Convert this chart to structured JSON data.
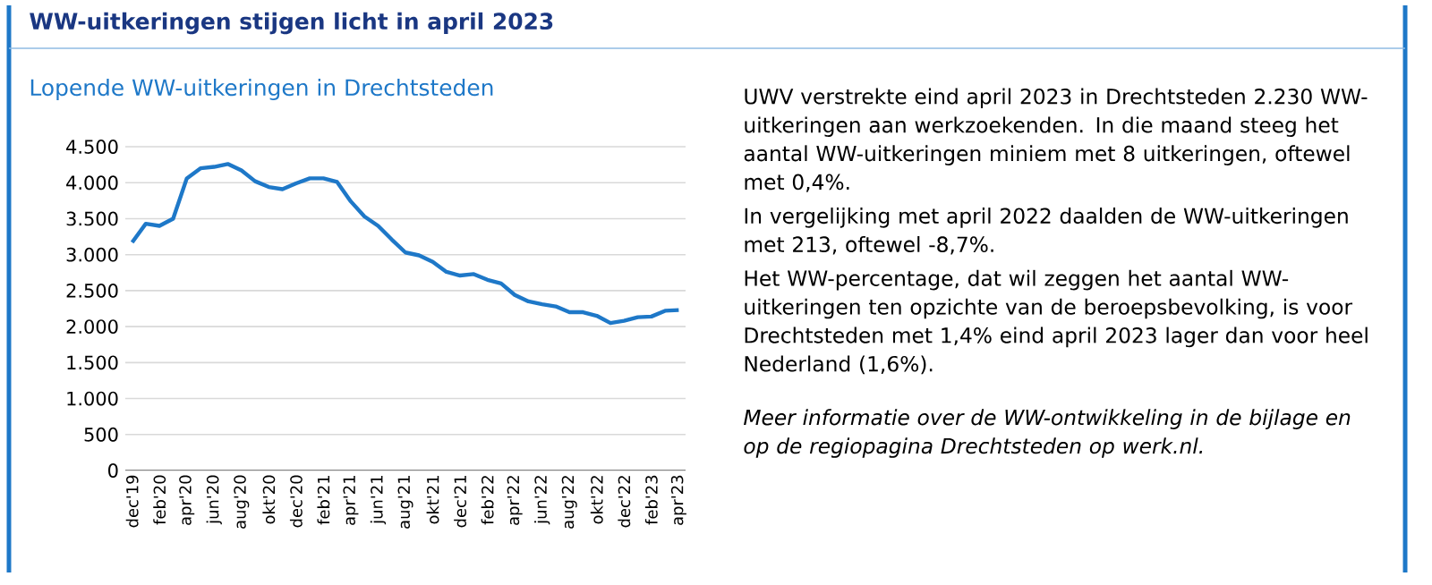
{
  "chart_data": {
    "type": "line",
    "title": "WW-uitkeringen stijgen licht in april 2023",
    "subtitle": "Lopende WW-uitkeringen in Drechtsteden",
    "categories": [
      "dec'19",
      null,
      "feb'20",
      null,
      "apr'20",
      null,
      "jun'20",
      null,
      "aug'20",
      null,
      "okt'20",
      null,
      "dec'20",
      null,
      "feb'21",
      null,
      "apr'21",
      null,
      "jun'21",
      null,
      "aug'21",
      null,
      "okt'21",
      null,
      "dec'21",
      null,
      "feb'22",
      null,
      "apr'22",
      null,
      "jun'22",
      null,
      "aug'22",
      null,
      "okt'22",
      null,
      "dec'22",
      null,
      "feb'23",
      null,
      "apr'23"
    ],
    "series": [
      {
        "color": "#1e78c8",
        "values": [
          3170,
          3430,
          3400,
          3500,
          4060,
          4200,
          4220,
          4260,
          4170,
          4020,
          3940,
          3910,
          3990,
          4060,
          4060,
          4010,
          3740,
          3530,
          3400,
          3210,
          3030,
          2990,
          2900,
          2760,
          2710,
          2730,
          2650,
          2600,
          2440,
          2350,
          2310,
          2280,
          2200,
          2200,
          2150,
          2050,
          2080,
          2130,
          2140,
          2220,
          2230
        ]
      }
    ],
    "ylim": [
      0,
      4500
    ],
    "yticks": [
      0,
      500,
      {
        "value": 1000,
        "label": "1.000"
      },
      {
        "value": 1500,
        "label": "1.500"
      },
      {
        "value": 2000,
        "label": "2.000"
      },
      {
        "value": 2500,
        "label": "2.500"
      },
      {
        "value": 3000,
        "label": "3.000"
      },
      {
        "value": 3500,
        "label": "3.500"
      },
      {
        "value": 4000,
        "label": "4.000"
      },
      {
        "value": 4500,
        "label": "4.500"
      }
    ],
    "grid": "y",
    "legend": false,
    "marker": "none",
    "line_style": "solid",
    "annotations": [
      "UWV verstrekte eind april 2023 in Drechtsteden 2.230 WW-uitkeringen aan werkzoekenden. In die maand steeg het aantal WW-uitkeringen miniem met 8 uitkeringen, oftewel met 0,4%.",
      "In vergelijking met april 2022 daalden de WW-uitkeringen met 213, oftewel -8,7%.",
      "Het WW-percentage, dat wil zeggen het aantal WW-uitkeringen ten opzichte van de beroepsbevolking, is voor Drechtsteden met 1,4% eind april 2023 lager dan voor heel Nederland (1,6%).",
      "Meer informatie over de WW-ontwikkeling in de bijlage en op de regiopagina Drechtsteden op werk.nl."
    ]
  }
}
